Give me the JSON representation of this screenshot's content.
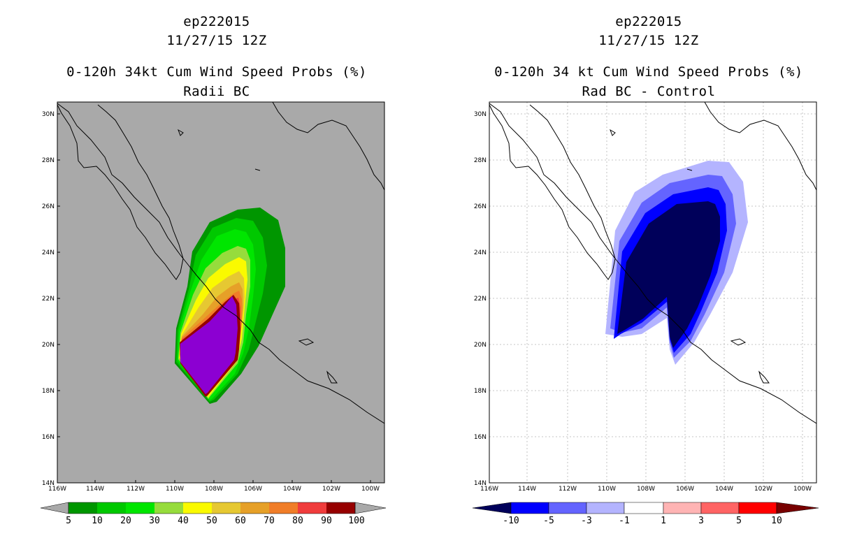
{
  "left": {
    "title1": "ep222015",
    "title2": "11/27/15 12Z",
    "title3": "0-120h 34kt Cum Wind Speed Probs (%)",
    "title4": "Radii BC",
    "background": "#a9a9a9",
    "colorbar": {
      "labels": [
        "5",
        "10",
        "20",
        "30",
        "40",
        "50",
        "60",
        "70",
        "80",
        "90",
        "100"
      ],
      "colors": [
        "#009600",
        "#00c800",
        "#00e600",
        "#96dc3c",
        "#fafa00",
        "#e6c832",
        "#e6a028",
        "#f07d28",
        "#f03c3c",
        "#960000",
        "#8c00d2"
      ]
    }
  },
  "right": {
    "title1": "ep222015",
    "title2": "11/27/15 12Z",
    "title3": "0-120h 34 kt Cum Wind Speed Probs (%)",
    "title4": "Rad BC - Control",
    "background": "#ffffff",
    "colorbar": {
      "labels": [
        "-10",
        "-5",
        "-3",
        "-1",
        "1",
        "3",
        "5",
        "10"
      ],
      "colors": [
        "#00005a",
        "#0000ff",
        "#6464ff",
        "#b4b4ff",
        "#ffffff",
        "#ffb4b4",
        "#ff6464",
        "#ff0000",
        "#780000"
      ]
    }
  },
  "axes": {
    "lon_labels": [
      "116W",
      "114W",
      "112W",
      "110W",
      "108W",
      "106W",
      "104W",
      "102W",
      "100W"
    ],
    "lat_labels": [
      "30N",
      "28N",
      "26N",
      "24N",
      "22N",
      "20N",
      "18N",
      "16N",
      "14N"
    ]
  }
}
